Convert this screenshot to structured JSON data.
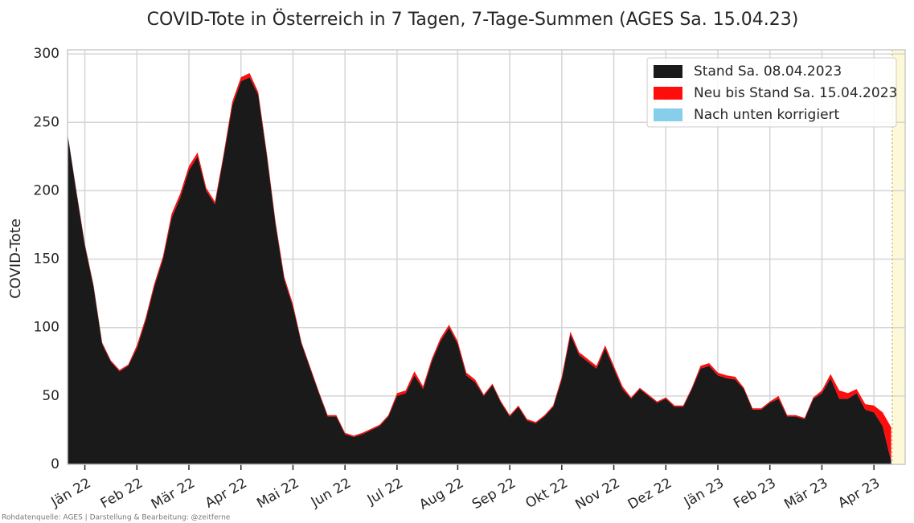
{
  "chart_data": {
    "type": "stacked_area",
    "title": "COVID-Tote in Österreich in 7 Tagen, 7-Tage-Summen (AGES Sa. 15.04.23)",
    "y_label": "COVID-Tote",
    "footer": "Rohdatenquelle: AGES | Darstellung & Bearbeitung: @zeitferne",
    "categories": [
      null,
      null,
      "Jän 22",
      null,
      null,
      null,
      null,
      null,
      "Feb 22",
      null,
      null,
      null,
      null,
      null,
      "Mär 22",
      null,
      null,
      null,
      null,
      null,
      "Apr 22",
      null,
      null,
      null,
      null,
      null,
      "Mai 22",
      null,
      null,
      null,
      null,
      null,
      "Jun 22",
      null,
      null,
      null,
      null,
      null,
      "Jul 22",
      null,
      null,
      null,
      null,
      null,
      null,
      "Aug 22",
      null,
      null,
      null,
      null,
      null,
      "Sep 22",
      null,
      null,
      null,
      null,
      null,
      "Okt 22",
      null,
      null,
      null,
      null,
      null,
      "Nov 22",
      null,
      null,
      null,
      null,
      null,
      "Dez 22",
      null,
      null,
      null,
      null,
      null,
      "Jän 23",
      null,
      null,
      null,
      null,
      null,
      "Feb 23",
      null,
      null,
      null,
      null,
      null,
      "Mär 23",
      null,
      null,
      null,
      null,
      null,
      "Apr 23",
      null,
      null
    ],
    "series": [
      {
        "name": "Stand Sa. 08.04.2023",
        "color": "#1a1a1a",
        "values": [
          242,
          200,
          160,
          130,
          88,
          75,
          68,
          72,
          85,
          105,
          130,
          150,
          180,
          195,
          215,
          225,
          200,
          190,
          225,
          262,
          280,
          283,
          270,
          225,
          175,
          135,
          115,
          88,
          70,
          52,
          35,
          35,
          22,
          20,
          22,
          25,
          28,
          35,
          50,
          52,
          65,
          55,
          75,
          90,
          100,
          88,
          65,
          60,
          50,
          58,
          45,
          35,
          42,
          32,
          30,
          35,
          42,
          62,
          95,
          80,
          75,
          70,
          85,
          70,
          55,
          48,
          55,
          50,
          45,
          48,
          42,
          42,
          55,
          70,
          72,
          65,
          63,
          62,
          55,
          40,
          40,
          45,
          48,
          35,
          35,
          33,
          48,
          52,
          63,
          48,
          48,
          52,
          40,
          38,
          28,
          2
        ]
      },
      {
        "name": "Neu bis Stand Sa. 15.04.2023",
        "color": "#ff0d0d",
        "values": [
          0,
          1,
          1,
          1,
          1,
          1,
          1,
          1,
          2,
          2,
          2,
          2,
          3,
          3,
          3,
          3,
          2,
          2,
          2,
          3,
          3,
          3,
          2,
          2,
          2,
          2,
          2,
          1,
          1,
          1,
          1,
          1,
          1,
          1,
          1,
          1,
          1,
          1,
          2,
          2,
          3,
          2,
          2,
          2,
          2,
          2,
          2,
          2,
          1,
          1,
          1,
          1,
          1,
          1,
          1,
          1,
          1,
          2,
          2,
          2,
          2,
          2,
          2,
          2,
          2,
          1,
          1,
          1,
          1,
          1,
          1,
          1,
          1,
          2,
          2,
          2,
          2,
          2,
          1,
          1,
          1,
          1,
          2,
          1,
          1,
          1,
          1,
          2,
          3,
          6,
          4,
          3,
          4,
          5,
          10,
          25
        ]
      },
      {
        "name": "Nach unten korrigiert",
        "color": "#87ceeb",
        "values": [
          0,
          0,
          0,
          0,
          0,
          0,
          0,
          0,
          0,
          0,
          0,
          0,
          0,
          0,
          0,
          0,
          0,
          0,
          0,
          0,
          0,
          0,
          0,
          0,
          0,
          0,
          0,
          0,
          0,
          0,
          0,
          0,
          0,
          0,
          0,
          0,
          0,
          0,
          0,
          0,
          0,
          0,
          0,
          0,
          0,
          0,
          0,
          0,
          0,
          0,
          0,
          0,
          0,
          0,
          0,
          0,
          0,
          0,
          0,
          0,
          0,
          0,
          0,
          0,
          0,
          0,
          0,
          0,
          0,
          0,
          0,
          0,
          0,
          0,
          0,
          0,
          0,
          0,
          0,
          0,
          0,
          0,
          0,
          0,
          0,
          0,
          0,
          0,
          0,
          0,
          0,
          0,
          0,
          0,
          0,
          0
        ]
      }
    ],
    "ylim": [
      0,
      303
    ],
    "yticks": [
      0,
      50,
      100,
      150,
      200,
      250,
      300
    ],
    "grid": true,
    "legend": "upper right"
  }
}
